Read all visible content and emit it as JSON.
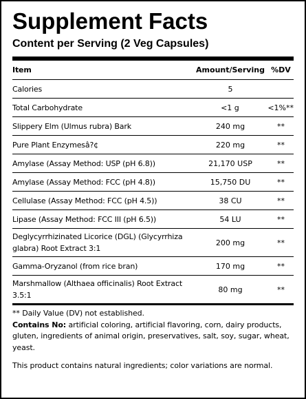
{
  "title": "Supplement Facts",
  "subtitle": "Content per Serving (2 Veg Capsules)",
  "header": {
    "item": "Item",
    "amount": "Amount/Serving",
    "dv": "%DV"
  },
  "rows": [
    {
      "item": "Calories",
      "amount": "5"
    },
    {
      "item": "Total Carbohydrate",
      "amount": "<1 g",
      "dv": "<1%**"
    },
    {
      "item": "Slippery Elm (Ulmus rubra) Bark",
      "amount": "240 mg",
      "dv": "**"
    },
    {
      "item": "Pure Plant Enzymesâ?¢",
      "amount": "220 mg",
      "dv": "**"
    },
    {
      "item": "Amylase (Assay Method: USP (pH 6.8))",
      "amount": "21,170 USP",
      "dv": "**"
    },
    {
      "item": "Amylase (Assay Method: FCC (pH 4.8))",
      "amount": "15,750 DU",
      "dv": "**"
    },
    {
      "item": "Cellulase (Assay Method: FCC (pH 4.5))",
      "amount": "38 CU",
      "dv": "**"
    },
    {
      "item": "Lipase (Assay Method: FCC III (pH 6.5))",
      "amount": "54 LU",
      "dv": "**"
    },
    {
      "item": "Deglycyrrhizinated Licorice (DGL) (Glycyrrhiza glabra) Root Extract 3:1",
      "amount": "200 mg",
      "dv": "**"
    },
    {
      "item": "Gamma-Oryzanol (from rice bran)",
      "amount": "170 mg",
      "dv": "**"
    },
    {
      "item": "Marshmallow (Althaea officinalis) Root Extract 3.5:1",
      "amount": "80 mg",
      "dv": "**"
    }
  ],
  "footer": {
    "note": "** Daily Value (DV) not established.",
    "contains_label": "Contains No:",
    "contains_text": "artificial coloring, artificial flavoring, corn, dairy products, gluten, ingredients of animal origin, preservatives, salt, soy, sugar, wheat, yeast.",
    "natural": "This product contains natural ingredients; color variations are normal."
  }
}
